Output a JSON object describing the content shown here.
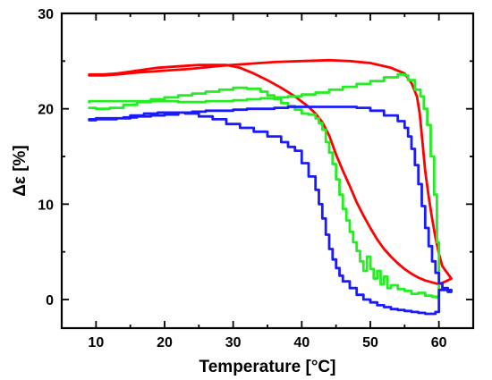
{
  "chart_data": {
    "type": "line",
    "xlabel": "Temperature [°C]",
    "ylabel": "Δε [%]",
    "xlim": [
      5,
      65
    ],
    "ylim": [
      -3,
      30
    ],
    "xticks": [
      10,
      20,
      30,
      40,
      50,
      60
    ],
    "yticks": [
      0,
      10,
      20,
      30
    ],
    "grid": false,
    "legend": "none",
    "series": [
      {
        "color": "#ff0000",
        "style": "smooth",
        "points": [
          [
            9,
            23.6
          ],
          [
            11,
            23.6
          ],
          [
            13,
            23.7
          ],
          [
            15,
            23.9
          ],
          [
            17,
            24.1
          ],
          [
            19,
            24.3
          ],
          [
            21,
            24.4
          ],
          [
            23,
            24.5
          ],
          [
            25,
            24.6
          ],
          [
            27,
            24.6
          ],
          [
            29,
            24.6
          ],
          [
            31,
            24.3
          ],
          [
            33,
            23.7
          ],
          [
            35,
            23
          ],
          [
            37,
            22.2
          ],
          [
            39,
            21.3
          ],
          [
            41,
            20.2
          ],
          [
            42,
            19.5
          ],
          [
            43,
            18.6
          ],
          [
            44,
            17.2
          ],
          [
            45,
            15.2
          ],
          [
            46,
            13.5
          ],
          [
            47,
            11.9
          ],
          [
            48,
            10.2
          ],
          [
            49,
            8.8
          ],
          [
            50,
            7.5
          ],
          [
            51,
            6.3
          ],
          [
            52,
            5.3
          ],
          [
            53,
            4.5
          ],
          [
            54,
            3.8
          ],
          [
            55,
            3.2
          ],
          [
            56,
            2.7
          ],
          [
            57,
            2.3
          ],
          [
            58,
            2
          ],
          [
            59,
            1.8
          ],
          [
            60,
            1.6
          ],
          [
            61,
            1.9
          ],
          [
            61.8,
            2.2
          ],
          [
            61.3,
            2.7
          ],
          [
            60.5,
            3.5
          ],
          [
            60,
            4.8
          ],
          [
            59.5,
            6.5
          ],
          [
            59,
            8.5
          ],
          [
            58.5,
            10.8
          ],
          [
            58,
            13.5
          ],
          [
            57.6,
            16.5
          ],
          [
            57.2,
            19.5
          ],
          [
            56.8,
            21.3
          ],
          [
            56,
            22.7
          ],
          [
            55,
            23.7
          ],
          [
            53,
            24.3
          ],
          [
            50,
            24.8
          ],
          [
            47,
            25
          ],
          [
            44,
            25.1
          ],
          [
            40,
            25
          ],
          [
            36,
            24.9
          ],
          [
            32,
            24.7
          ],
          [
            28,
            24.5
          ],
          [
            24,
            24.2
          ],
          [
            20,
            24
          ],
          [
            16,
            23.8
          ],
          [
            13,
            23.6
          ],
          [
            11,
            23.5
          ],
          [
            9,
            23.5
          ]
        ]
      },
      {
        "color": "#22ee22",
        "style": "step",
        "points": [
          [
            9,
            20.1
          ],
          [
            10,
            20
          ],
          [
            12,
            20.1
          ],
          [
            14,
            20.4
          ],
          [
            16,
            20.7
          ],
          [
            18,
            21
          ],
          [
            20,
            21.2
          ],
          [
            22,
            21.4
          ],
          [
            24,
            21.6
          ],
          [
            26,
            21.8
          ],
          [
            28,
            22
          ],
          [
            30,
            22.2
          ],
          [
            32,
            22.1
          ],
          [
            34,
            21.8
          ],
          [
            35,
            21.4
          ],
          [
            36,
            21
          ],
          [
            37,
            20.6
          ],
          [
            38,
            20.3
          ],
          [
            39,
            19.9
          ],
          [
            40,
            19.5
          ],
          [
            41,
            19.4
          ],
          [
            42,
            19
          ],
          [
            42.5,
            18.5
          ],
          [
            43,
            17.8
          ],
          [
            43.5,
            16.5
          ],
          [
            44,
            15.4
          ],
          [
            44.5,
            14.2
          ],
          [
            45,
            12.6
          ],
          [
            45.5,
            11
          ],
          [
            46,
            9.5
          ],
          [
            46.5,
            8.3
          ],
          [
            47,
            7.1
          ],
          [
            47.5,
            6
          ],
          [
            48,
            5.1
          ],
          [
            48.5,
            4
          ],
          [
            49,
            3
          ],
          [
            49.5,
            4.5
          ],
          [
            50,
            3.2
          ],
          [
            50.5,
            2.2
          ],
          [
            51,
            3
          ],
          [
            51.5,
            1.6
          ],
          [
            52,
            2.4
          ],
          [
            52.5,
            1.2
          ],
          [
            53,
            1.5
          ],
          [
            54,
            1.1
          ],
          [
            55,
            0.9
          ],
          [
            56,
            0.6
          ],
          [
            57,
            0.7
          ],
          [
            58,
            0.4
          ],
          [
            59,
            0.3
          ],
          [
            59.7,
            0.2
          ],
          [
            60,
            0.5
          ],
          [
            60,
            2
          ],
          [
            60,
            6
          ],
          [
            59.7,
            11
          ],
          [
            59.3,
            15
          ],
          [
            58.8,
            18.3
          ],
          [
            58.3,
            20
          ],
          [
            57.8,
            21.3
          ],
          [
            57.3,
            22
          ],
          [
            56.5,
            23
          ],
          [
            55.5,
            23.5
          ],
          [
            55,
            23.6
          ],
          [
            54,
            23.3
          ],
          [
            52,
            22.9
          ],
          [
            50,
            22.6
          ],
          [
            48,
            22.3
          ],
          [
            46,
            22
          ],
          [
            44,
            21.7
          ],
          [
            42,
            21.5
          ],
          [
            40,
            21.3
          ],
          [
            38,
            21.2
          ],
          [
            36,
            21.1
          ],
          [
            34,
            21
          ],
          [
            32,
            20.9
          ],
          [
            30,
            20.8
          ],
          [
            28,
            20.8
          ],
          [
            26,
            20.7
          ],
          [
            24,
            20.7
          ],
          [
            22,
            20.8
          ],
          [
            20,
            20.8
          ],
          [
            18,
            20.8
          ],
          [
            16,
            20.8
          ],
          [
            14,
            20.8
          ],
          [
            12,
            20.8
          ],
          [
            10,
            20.8
          ],
          [
            9,
            20.7
          ]
        ]
      },
      {
        "color": "#1a1aff",
        "style": "step",
        "points": [
          [
            9,
            18.9
          ],
          [
            11,
            18.9
          ],
          [
            13,
            19
          ],
          [
            15,
            19.3
          ],
          [
            17,
            19.5
          ],
          [
            19,
            19.6
          ],
          [
            21,
            19.6
          ],
          [
            23,
            19.5
          ],
          [
            25,
            19.2
          ],
          [
            27,
            18.9
          ],
          [
            29,
            18.4
          ],
          [
            31,
            18
          ],
          [
            33,
            17.6
          ],
          [
            35,
            17.1
          ],
          [
            37,
            16.5
          ],
          [
            38,
            16
          ],
          [
            39,
            15.6
          ],
          [
            40,
            14.3
          ],
          [
            41,
            12.9
          ],
          [
            42,
            11.5
          ],
          [
            42.5,
            10
          ],
          [
            43,
            8.5
          ],
          [
            43.5,
            6.8
          ],
          [
            44,
            5.3
          ],
          [
            44.5,
            4.2
          ],
          [
            45,
            3.3
          ],
          [
            45.5,
            2.5
          ],
          [
            46,
            1.9
          ],
          [
            47,
            1.2
          ],
          [
            48,
            0.5
          ],
          [
            49,
            0
          ],
          [
            50,
            -0.3
          ],
          [
            51,
            -0.6
          ],
          [
            52,
            -0.8
          ],
          [
            53,
            -1
          ],
          [
            54,
            -1.1
          ],
          [
            55,
            -1.2
          ],
          [
            56,
            -1.3
          ],
          [
            57,
            -1.4
          ],
          [
            58,
            -1.5
          ],
          [
            59,
            -1.5
          ],
          [
            59.5,
            -1.3
          ],
          [
            60,
            -1.3
          ],
          [
            60,
            0.3
          ],
          [
            60,
            1
          ],
          [
            61,
            1
          ],
          [
            61.8,
            0.8
          ],
          [
            61.3,
            1.2
          ],
          [
            60.5,
            1.7
          ],
          [
            60,
            2.8
          ],
          [
            59.5,
            4
          ],
          [
            59,
            5.6
          ],
          [
            58.5,
            7.5
          ],
          [
            58,
            9.8
          ],
          [
            57.5,
            12.1
          ],
          [
            57,
            14.1
          ],
          [
            56.5,
            15.8
          ],
          [
            56,
            17.1
          ],
          [
            55.5,
            18
          ],
          [
            55,
            18.7
          ],
          [
            54,
            19.3
          ],
          [
            52,
            19.8
          ],
          [
            50,
            20.1
          ],
          [
            48,
            20.2
          ],
          [
            46,
            20.2
          ],
          [
            44,
            20.2
          ],
          [
            42,
            20.2
          ],
          [
            40,
            20.2
          ],
          [
            38,
            20.1
          ],
          [
            36,
            20
          ],
          [
            34,
            20
          ],
          [
            32,
            19.9
          ],
          [
            30,
            19.8
          ],
          [
            28,
            19.8
          ],
          [
            26,
            19.7
          ],
          [
            24,
            19.6
          ],
          [
            22,
            19.4
          ],
          [
            20,
            19.3
          ],
          [
            18,
            19.2
          ],
          [
            16,
            19.1
          ],
          [
            14,
            19
          ],
          [
            12,
            19
          ],
          [
            10,
            18.8
          ],
          [
            9,
            18.8
          ]
        ]
      }
    ]
  }
}
